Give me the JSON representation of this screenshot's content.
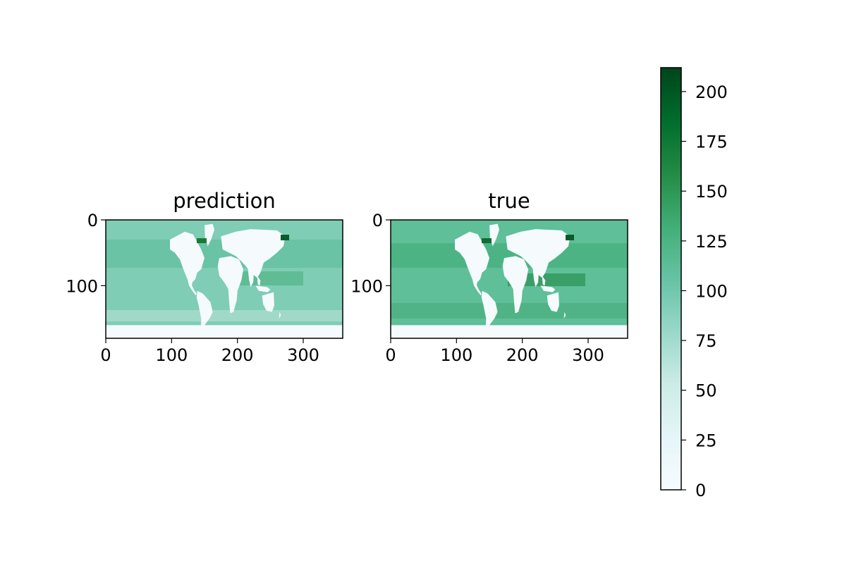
{
  "chart_data": [
    {
      "type": "heatmap",
      "title": "prediction",
      "xlabel": "",
      "ylabel": "",
      "xlim": [
        0,
        360
      ],
      "ylim": [
        180,
        0
      ],
      "xticks": [
        0,
        100,
        200,
        300
      ],
      "yticks": [
        0,
        100
      ],
      "grid": false,
      "colormap": "BuGn",
      "land_color": "#f5fbfd",
      "content": "global ocean field on a 360 x 180 grid; land masked white"
    },
    {
      "type": "heatmap",
      "title": "true",
      "xlabel": "",
      "ylabel": "",
      "xlim": [
        0,
        360
      ],
      "ylim": [
        180,
        0
      ],
      "xticks": [
        0,
        100,
        200,
        300
      ],
      "yticks": [
        0,
        100
      ],
      "grid": false,
      "colormap": "BuGn",
      "land_color": "#f5fbfd",
      "content": "global ocean field on a 360 x 180 grid; land masked white"
    }
  ],
  "colorbar": {
    "min": 0,
    "max": 212,
    "ticks": [
      0,
      25,
      50,
      75,
      100,
      125,
      150,
      175,
      200
    ],
    "placement": "right",
    "colors": [
      "#f7fcfd",
      "#e5f5f9",
      "#ccece6",
      "#99d8c9",
      "#66c2a4",
      "#41ae76",
      "#238b45",
      "#006d2c",
      "#00441b"
    ]
  }
}
